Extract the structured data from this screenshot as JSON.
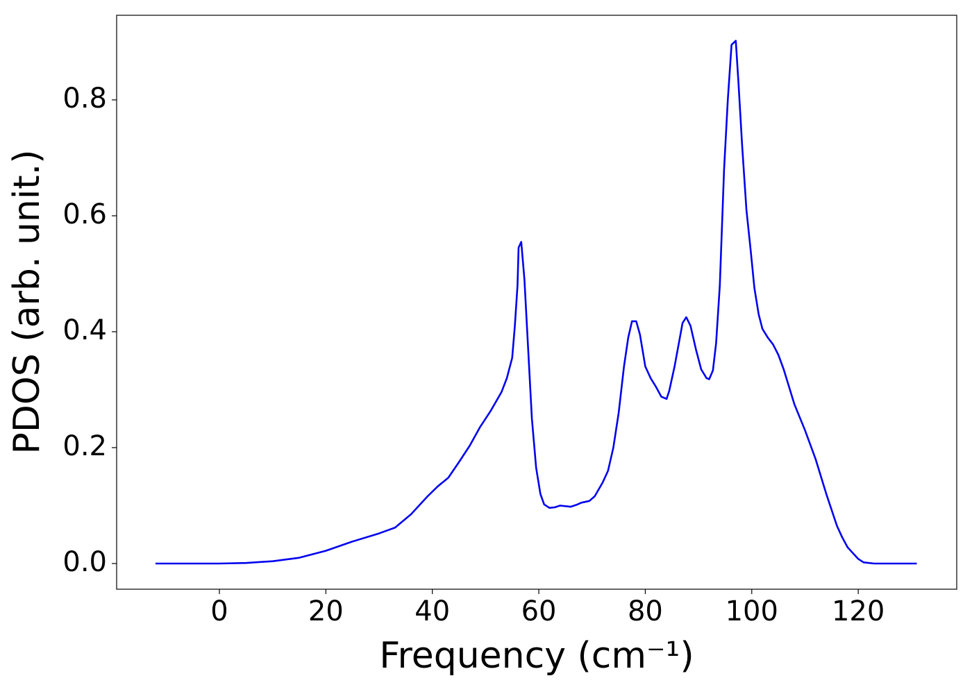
{
  "chart_data": {
    "type": "line",
    "xlabel": "Frequency (cm⁻¹)",
    "ylabel": "PDOS (arb. unit.)",
    "x": [
      -12,
      0,
      5,
      10,
      15,
      20,
      25,
      30,
      33,
      36,
      39,
      41,
      43,
      45,
      47,
      49,
      51,
      53,
      54,
      55,
      55.5,
      56,
      56.2,
      56.7,
      57.3,
      58,
      58.7,
      59.5,
      60.3,
      61,
      62,
      63,
      64,
      66,
      67,
      68,
      69.5,
      70.5,
      72,
      73,
      74,
      75,
      76,
      76.8,
      77.5,
      78.3,
      79,
      80,
      81,
      82,
      83,
      84,
      84.5,
      85.5,
      86.5,
      87,
      87.7,
      88.5,
      89.5,
      90.5,
      91.5,
      92,
      92.7,
      93.3,
      94,
      94.8,
      95.5,
      96.2,
      97,
      97.5,
      98.2,
      99,
      99.8,
      100.5,
      101.3,
      102,
      103,
      104,
      105,
      106,
      107,
      108,
      110,
      112,
      114,
      116,
      117,
      118,
      120,
      121,
      123,
      131
    ],
    "series": [
      {
        "name": "PDOS",
        "color": "#0000ee",
        "values": [
          0,
          0,
          0.001,
          0.004,
          0.01,
          0.022,
          0.038,
          0.052,
          0.062,
          0.085,
          0.115,
          0.133,
          0.148,
          0.175,
          0.203,
          0.236,
          0.264,
          0.296,
          0.32,
          0.355,
          0.41,
          0.48,
          0.545,
          0.555,
          0.49,
          0.37,
          0.25,
          0.165,
          0.12,
          0.102,
          0.096,
          0.097,
          0.1,
          0.098,
          0.101,
          0.105,
          0.108,
          0.116,
          0.14,
          0.16,
          0.2,
          0.26,
          0.34,
          0.39,
          0.418,
          0.418,
          0.395,
          0.34,
          0.32,
          0.305,
          0.288,
          0.284,
          0.298,
          0.34,
          0.39,
          0.415,
          0.425,
          0.41,
          0.37,
          0.335,
          0.32,
          0.318,
          0.333,
          0.38,
          0.48,
          0.68,
          0.8,
          0.895,
          0.902,
          0.83,
          0.72,
          0.61,
          0.54,
          0.475,
          0.43,
          0.405,
          0.39,
          0.378,
          0.36,
          0.335,
          0.305,
          0.275,
          0.23,
          0.18,
          0.12,
          0.065,
          0.045,
          0.028,
          0.008,
          0.002,
          0,
          0
        ]
      }
    ],
    "xlim": [
      -19.3,
      138.5
    ],
    "xticks": [
      0,
      20,
      40,
      60,
      80,
      100,
      120
    ],
    "ylim": [
      -0.0443,
      0.946
    ],
    "yticks": [
      {
        "value": 0,
        "label": "0.0"
      },
      0.2,
      0.4,
      0.6,
      0.8
    ]
  }
}
